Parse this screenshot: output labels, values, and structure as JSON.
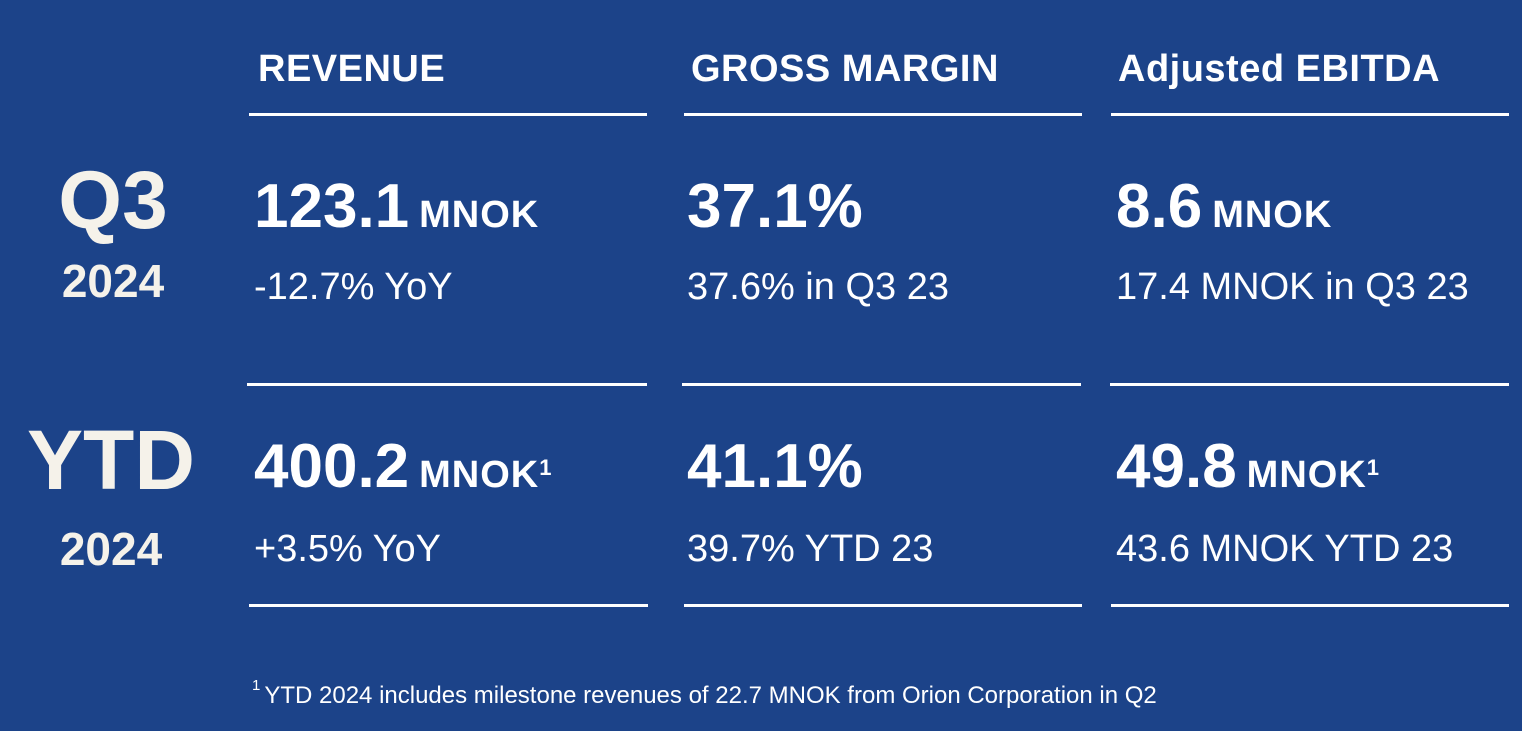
{
  "headers": {
    "revenue": "REVENUE",
    "gross_margin": "GROSS MARGIN",
    "ebitda": "Adjusted EBITDA"
  },
  "q3": {
    "label": "Q3",
    "year": "2024",
    "revenue": {
      "value": "123.1",
      "unit": "MNOK",
      "sub": "-12.7% YoY"
    },
    "gross_margin": {
      "value": "37.1%",
      "sub": "37.6% in Q3 23"
    },
    "ebitda": {
      "value": "8.6",
      "unit": "MNOK",
      "sub": "17.4 MNOK in Q3 23"
    }
  },
  "ytd": {
    "label": "YTD",
    "year": "2024",
    "revenue": {
      "value": "400.2",
      "unit": "MNOK",
      "footnote_ref": "1",
      "sub": "+3.5% YoY"
    },
    "gross_margin": {
      "value": "41.1%",
      "sub": "39.7% YTD 23"
    },
    "ebitda": {
      "value": "49.8",
      "unit": "MNOK",
      "footnote_ref": "1",
      "sub": "43.6 MNOK YTD 23"
    }
  },
  "footnote": {
    "marker": "1",
    "text": "YTD 2024 includes milestone revenues of 22.7 MNOK from Orion Corporation in Q2"
  },
  "colors": {
    "background": "#1c4389",
    "text": "#ffffff",
    "period_text": "#f5f2ea"
  }
}
